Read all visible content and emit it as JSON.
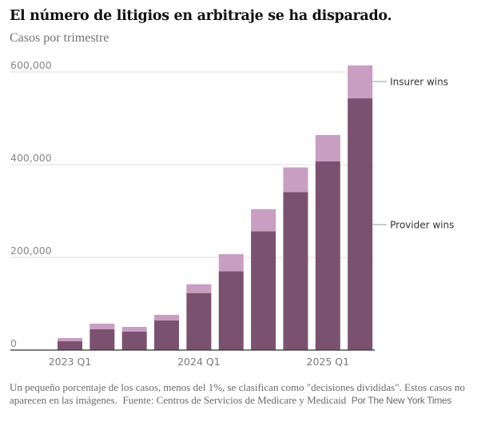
{
  "chart_data": {
    "type": "bar",
    "stacked": true,
    "title": "El número de litigios en arbitraje se ha disparado.",
    "subtitle": "Casos por trimestre",
    "xlabel": "",
    "ylabel": "",
    "ylim": [
      0,
      620000
    ],
    "yticks": [
      0,
      200000,
      400000,
      600000
    ],
    "ytick_labels": [
      "0",
      "200,000",
      "400,000",
      "600,000"
    ],
    "grid": true,
    "categories": [
      "2023 Q1",
      "2023 Q2",
      "2023 Q3",
      "2023 Q4",
      "2024 Q1",
      "2024 Q2",
      "2024 Q3",
      "2024 Q4",
      "2025 Q1",
      "2025 Q2"
    ],
    "xtick_labels": [
      {
        "category": "2023 Q1",
        "label": "2023 Q1"
      },
      {
        "category": "2024 Q1",
        "label": "2024 Q1"
      },
      {
        "category": "2025 Q1",
        "label": "2025 Q1"
      }
    ],
    "series": [
      {
        "name": "Provider wins",
        "color": "#7a5270",
        "values": [
          19000,
          45000,
          40000,
          64000,
          123000,
          170000,
          256000,
          341000,
          407000,
          543000
        ]
      },
      {
        "name": "Insurer wins",
        "color": "#c89ec2",
        "values": [
          7000,
          12000,
          10000,
          12000,
          19000,
          37000,
          48000,
          53000,
          57000,
          71000
        ]
      }
    ],
    "totals": [
      26000,
      57000,
      50000,
      76000,
      142000,
      207000,
      304000,
      394000,
      464000,
      614000
    ],
    "legend": "direct-labels-right",
    "annotations": [
      {
        "series": "Insurer wins",
        "label": "Insurer wins"
      },
      {
        "series": "Provider wins",
        "label": "Provider wins"
      }
    ]
  },
  "header": {
    "title": "El número de litigios en arbitraje se ha disparado.",
    "subtitle": "Casos por trimestre"
  },
  "footer": {
    "note": "Un pequeño porcentaje de los casos, menos del 1%, se clasifican como \"decisiones divididas\". Estos casos no aparecen en las imágenes.",
    "source": "Fuente: Centros de Servicios de Medicare y Medicaid",
    "byline": "Por The New York Times"
  }
}
